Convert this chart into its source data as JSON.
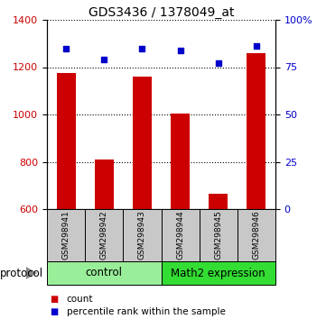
{
  "title": "GDS3436 / 1378049_at",
  "samples": [
    "GSM298941",
    "GSM298942",
    "GSM298943",
    "GSM298944",
    "GSM298945",
    "GSM298946"
  ],
  "counts": [
    1175,
    810,
    1160,
    1005,
    665,
    1260
  ],
  "percentile_ranks": [
    85,
    79,
    85,
    84,
    77,
    86
  ],
  "ylim_left": [
    600,
    1400
  ],
  "ylim_right": [
    0,
    100
  ],
  "yticks_left": [
    600,
    800,
    1000,
    1200,
    1400
  ],
  "yticks_right": [
    0,
    25,
    50,
    75,
    100
  ],
  "ytick_labels_right": [
    "0",
    "25",
    "50",
    "75",
    "100%"
  ],
  "bar_color": "#cc0000",
  "dot_color": "#0000cc",
  "bar_width": 0.5,
  "groups": [
    {
      "label": "control",
      "indices": [
        0,
        1,
        2
      ],
      "color": "#99ee99"
    },
    {
      "label": "Math2 expression",
      "indices": [
        3,
        4,
        5
      ],
      "color": "#33dd33"
    }
  ],
  "protocol_label": "protocol",
  "legend_items": [
    {
      "label": "count",
      "color": "#cc0000"
    },
    {
      "label": "percentile rank within the sample",
      "color": "#0000cc"
    }
  ],
  "bg_color": "#ffffff",
  "label_area_color": "#c8c8c8",
  "title_fontsize": 10,
  "tick_fontsize": 8,
  "legend_fontsize": 7.5,
  "sample_fontsize": 6.5,
  "group_label_fontsize": 8.5,
  "protocol_fontsize": 8.5
}
